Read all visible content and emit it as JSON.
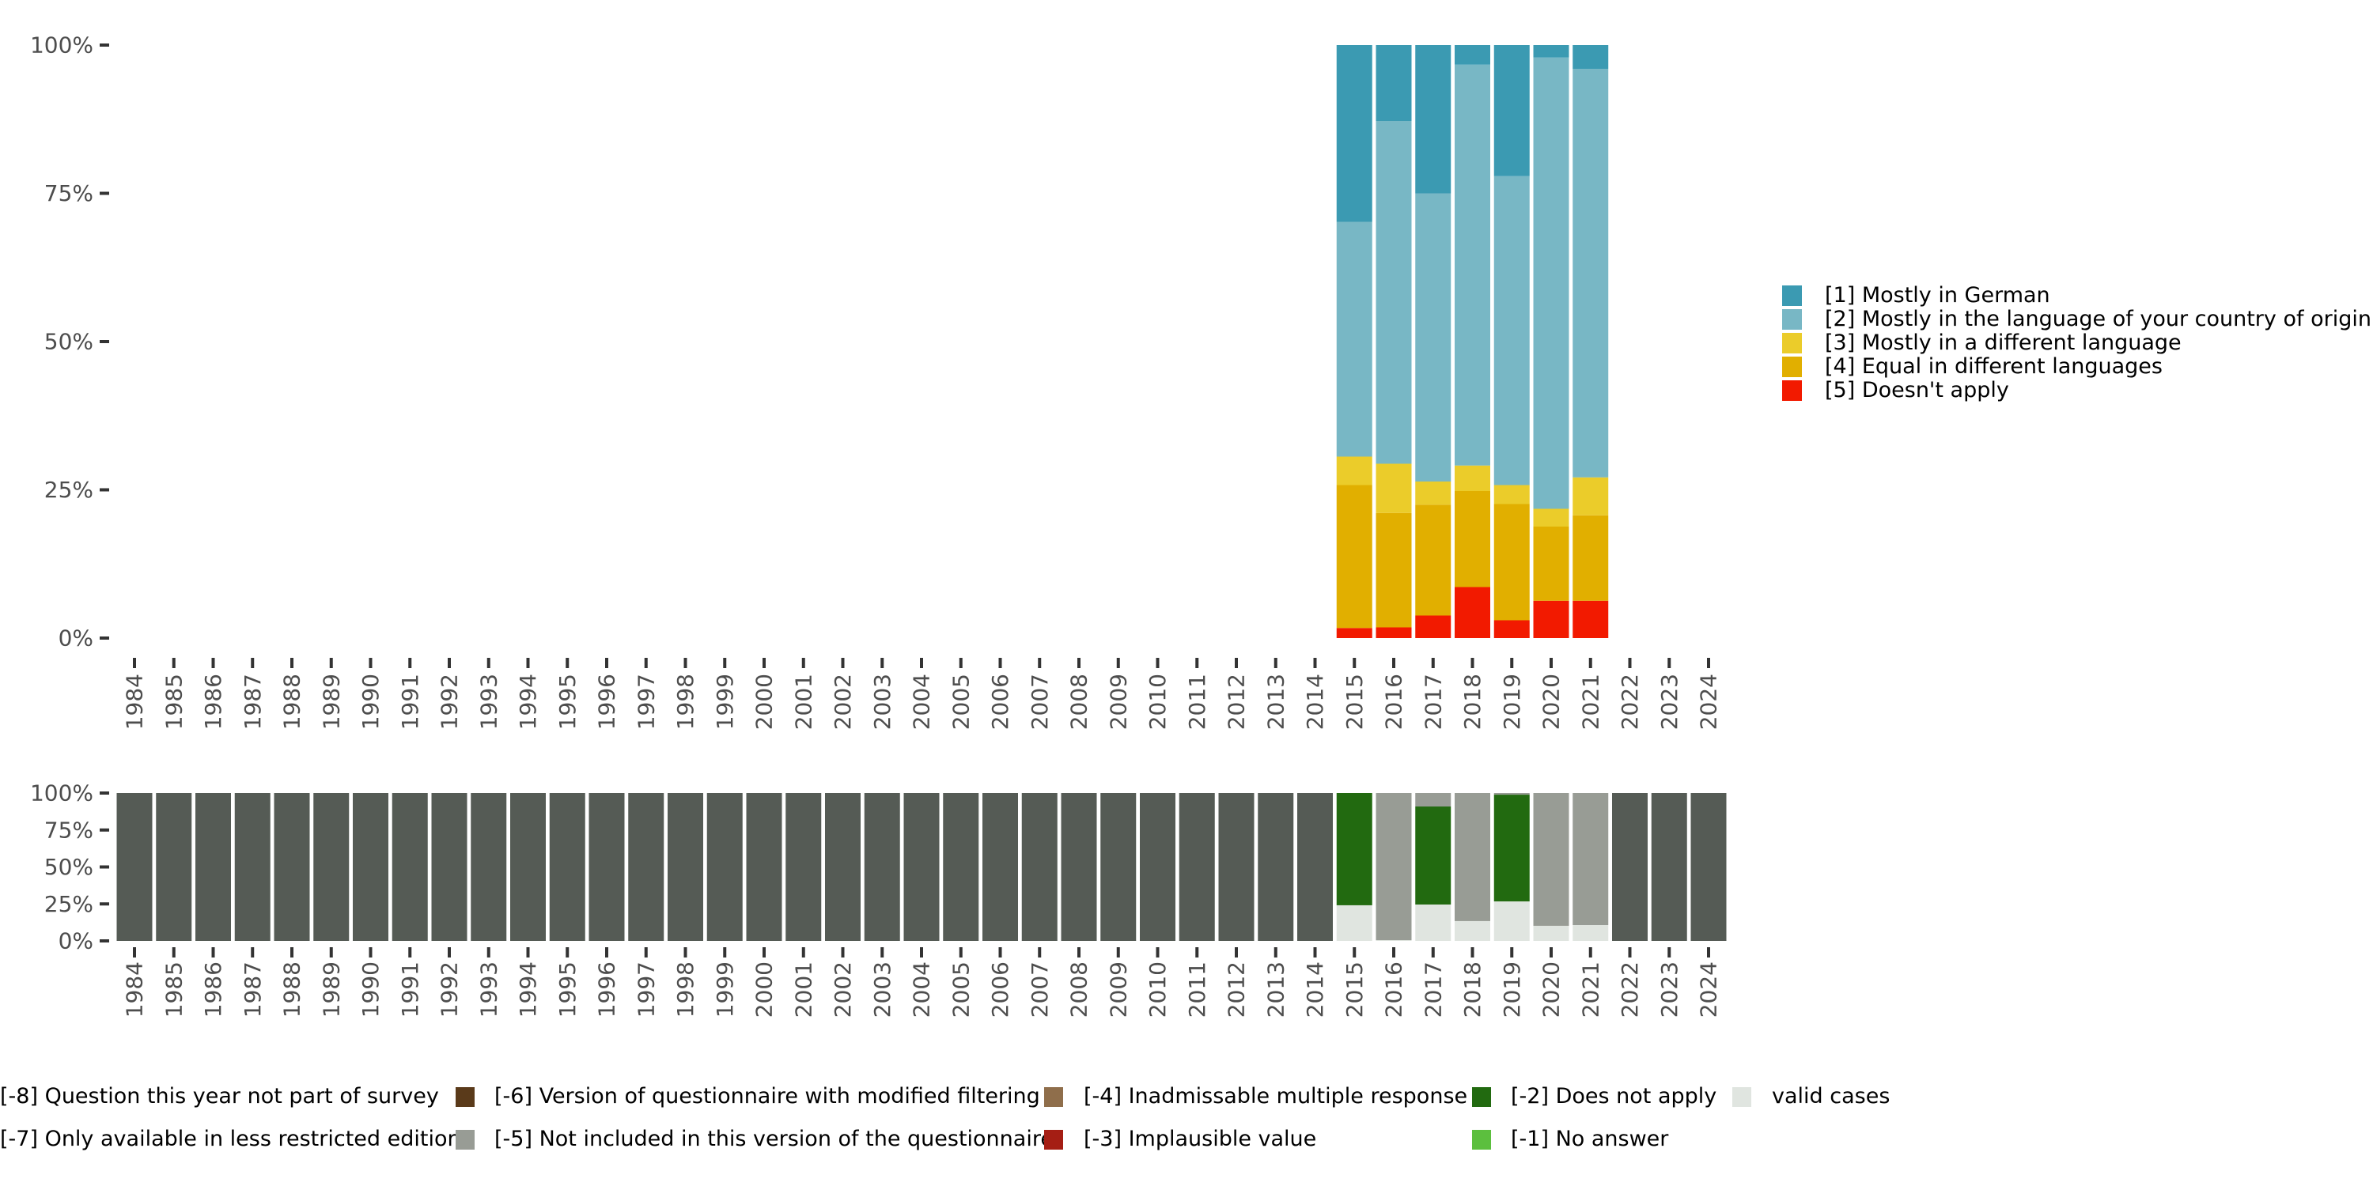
{
  "chart_data": [
    {
      "type": "bar",
      "stacked": true,
      "title": "",
      "xlabel": "",
      "ylabel": "",
      "ylim": [
        0,
        100
      ],
      "y_ticks": [
        "0%",
        "25%",
        "50%",
        "75%",
        "100%"
      ],
      "categories": [
        "1984",
        "1985",
        "1986",
        "1987",
        "1988",
        "1989",
        "1990",
        "1991",
        "1992",
        "1993",
        "1994",
        "1995",
        "1996",
        "1997",
        "1998",
        "1999",
        "2000",
        "2001",
        "2002",
        "2003",
        "2004",
        "2005",
        "2006",
        "2007",
        "2008",
        "2009",
        "2010",
        "2011",
        "2012",
        "2013",
        "2014",
        "2015",
        "2016",
        "2017",
        "2018",
        "2019",
        "2020",
        "2021",
        "2022",
        "2023",
        "2024"
      ],
      "legend_position": "right",
      "series": [
        {
          "name": "[5] Doesn't apply",
          "color": "#f21a00",
          "values": {
            "2015": 1.7,
            "2016": 1.8,
            "2017": 3.8,
            "2018": 8.6,
            "2019": 3.0,
            "2020": 6.3,
            "2021": 6.3
          }
        },
        {
          "name": "[4] Equal in different languages",
          "color": "#e1af00",
          "values": {
            "2015": 24.1,
            "2016": 19.3,
            "2017": 18.7,
            "2018": 16.2,
            "2019": 19.6,
            "2020": 12.5,
            "2021": 14.4
          }
        },
        {
          "name": "[3] Mostly in a different language",
          "color": "#ebcc2a",
          "values": {
            "2015": 4.8,
            "2016": 8.3,
            "2017": 3.9,
            "2018": 4.3,
            "2019": 3.2,
            "2020": 3.0,
            "2021": 6.4
          }
        },
        {
          "name": "[2] Mostly in the language of your country of origin",
          "color": "#78b7c5",
          "values": {
            "2015": 39.6,
            "2016": 57.8,
            "2017": 48.6,
            "2018": 67.6,
            "2019": 52.1,
            "2020": 76.1,
            "2021": 68.9
          }
        },
        {
          "name": "[1] Mostly in German",
          "color": "#3b9ab2",
          "values": {
            "2015": 29.8,
            "2016": 12.8,
            "2017": 25.0,
            "2018": 3.3,
            "2019": 22.1,
            "2020": 2.1,
            "2021": 4.0
          }
        }
      ],
      "legend_order": [
        4,
        3,
        2,
        1,
        0
      ]
    },
    {
      "type": "bar",
      "stacked": true,
      "title": "",
      "xlabel": "",
      "ylabel": "",
      "ylim": [
        0,
        100
      ],
      "y_ticks": [
        "0%",
        "25%",
        "50%",
        "75%",
        "100%"
      ],
      "categories": [
        "1984",
        "1985",
        "1986",
        "1987",
        "1988",
        "1989",
        "1990",
        "1991",
        "1992",
        "1993",
        "1994",
        "1995",
        "1996",
        "1997",
        "1998",
        "1999",
        "2000",
        "2001",
        "2002",
        "2003",
        "2004",
        "2005",
        "2006",
        "2007",
        "2008",
        "2009",
        "2010",
        "2011",
        "2012",
        "2013",
        "2014",
        "2015",
        "2016",
        "2017",
        "2018",
        "2019",
        "2020",
        "2021",
        "2022",
        "2023",
        "2024"
      ],
      "legend_position": "bottom",
      "series": [
        {
          "name": "valid cases",
          "color": "#e0e5e0",
          "values": {
            "2015": 24.1,
            "2016": 0.5,
            "2017": 24.6,
            "2018": 13.4,
            "2019": 26.7,
            "2020": 10.2,
            "2021": 10.7
          }
        },
        {
          "name": "[-1] No answer",
          "color": "#5cbf3e",
          "values": {}
        },
        {
          "name": "[-2] Does not apply",
          "color": "#226a10",
          "values": {
            "2015": 75.9,
            "2017": 66.3,
            "2019": 72.2
          }
        },
        {
          "name": "[-3] Implausible value",
          "color": "#a51e14",
          "values": {}
        },
        {
          "name": "[-4] Inadmissable multiple response",
          "color": "#8f6e4b",
          "values": {}
        },
        {
          "name": "[-5] Not included in this version of the questionnaire",
          "color": "#989c95",
          "values": {
            "2016": 99.5,
            "2017": 9.1,
            "2018": 86.6,
            "2019": 1.1,
            "2020": 89.8,
            "2021": 89.3
          }
        },
        {
          "name": "[-6] Version of questionnaire with modified filtering",
          "color": "#5a3a1a",
          "values": {}
        },
        {
          "name": "[-7] Only available in less restricted edition",
          "color": "#989c95",
          "values": {}
        },
        {
          "name": "[-8] Question this year not part of survey",
          "color": "#555b55",
          "values": {
            "1984": 100,
            "1985": 100,
            "1986": 100,
            "1987": 100,
            "1988": 100,
            "1989": 100,
            "1990": 100,
            "1991": 100,
            "1992": 100,
            "1993": 100,
            "1994": 100,
            "1995": 100,
            "1996": 100,
            "1997": 100,
            "1998": 100,
            "1999": 100,
            "2000": 100,
            "2001": 100,
            "2002": 100,
            "2003": 100,
            "2004": 100,
            "2005": 100,
            "2006": 100,
            "2007": 100,
            "2008": 100,
            "2009": 100,
            "2010": 100,
            "2011": 100,
            "2012": 100,
            "2013": 100,
            "2014": 100,
            "2022": 100,
            "2023": 100,
            "2024": 100
          }
        }
      ]
    }
  ]
}
